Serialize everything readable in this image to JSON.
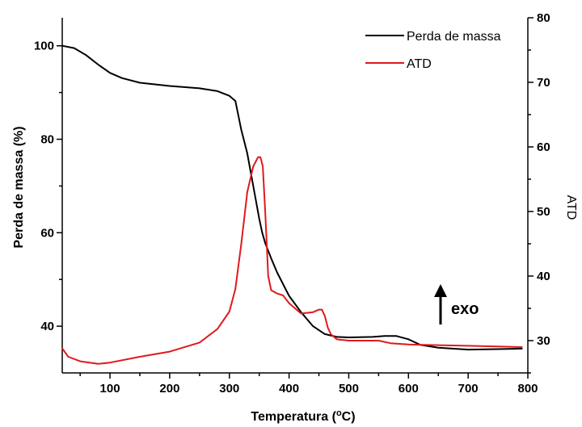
{
  "chart_data": {
    "type": "line",
    "title": "",
    "xlabel": "Temperatura (°C)",
    "xlabel_parts": {
      "main": "Temperatura (",
      "sup": "o",
      "tail": "C)"
    },
    "ylabel_left": "Perda de massa (%)",
    "ylabel_right": "ATD",
    "xlim": [
      20,
      800
    ],
    "ylim_left": [
      30,
      106
    ],
    "ylim_right": [
      25,
      80
    ],
    "x_ticks": [
      100,
      200,
      300,
      400,
      500,
      600,
      700,
      800
    ],
    "y_left_ticks": [
      40,
      60,
      80,
      100
    ],
    "y_right_ticks": [
      30,
      40,
      50,
      60,
      70,
      80
    ],
    "legend_position": "top-right",
    "grid": false,
    "annotation": {
      "text": "exo",
      "arrow": "up"
    },
    "series": [
      {
        "name": "Perda de massa",
        "color": "#000000",
        "axis": "left",
        "x": [
          20,
          40,
          60,
          80,
          100,
          120,
          150,
          200,
          250,
          280,
          300,
          310,
          320,
          330,
          340,
          350,
          355,
          360,
          370,
          380,
          400,
          420,
          440,
          460,
          480,
          500,
          540,
          560,
          580,
          600,
          620,
          650,
          700,
          750,
          790
        ],
        "y": [
          100,
          99.5,
          98,
          96,
          94.2,
          93.1,
          92.1,
          91.4,
          90.9,
          90.3,
          89.3,
          88.2,
          82,
          77,
          70,
          63,
          60,
          57.8,
          54.5,
          51.5,
          46.5,
          43,
          40,
          38.3,
          37.7,
          37.6,
          37.7,
          37.9,
          37.9,
          37.2,
          36,
          35.4,
          35,
          35.1,
          35.2
        ]
      },
      {
        "name": "ATD",
        "color": "#e0191c",
        "axis": "right",
        "x": [
          20,
          30,
          50,
          80,
          100,
          150,
          200,
          250,
          280,
          300,
          310,
          320,
          330,
          340,
          348,
          352,
          356,
          360,
          365,
          370,
          380,
          390,
          400,
          420,
          440,
          450,
          455,
          460,
          465,
          470,
          480,
          500,
          550,
          570,
          600,
          650,
          700,
          750,
          790
        ],
        "y": [
          28.8,
          27.5,
          26.8,
          26.4,
          26.6,
          27.5,
          28.3,
          29.7,
          31.8,
          34.5,
          38,
          45,
          53,
          57,
          58.4,
          58.4,
          57,
          50,
          40,
          37.8,
          37.3,
          37,
          35.8,
          34.2,
          34.4,
          34.8,
          34.8,
          33.8,
          32,
          31,
          30.2,
          30,
          30,
          29.6,
          29.4,
          29.3,
          29.2,
          29.1,
          29
        ]
      }
    ]
  }
}
